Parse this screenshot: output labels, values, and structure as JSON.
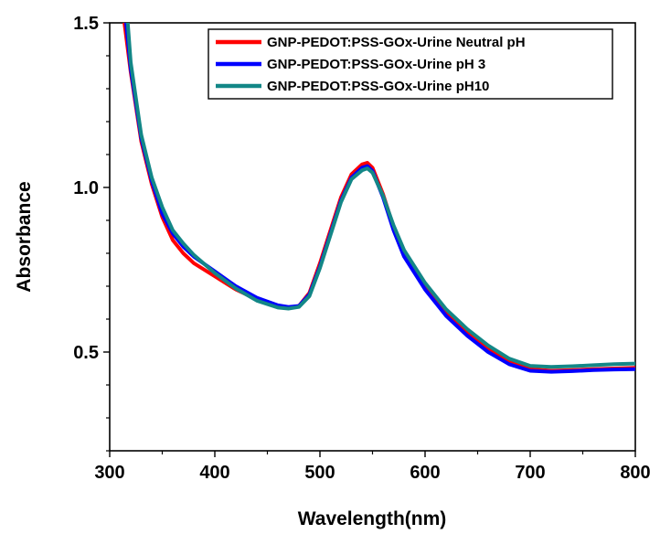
{
  "chart_data": {
    "type": "line",
    "title": "",
    "xlabel": "Wavelength(nm)",
    "ylabel": "Absorbance",
    "xlim": [
      300,
      800
    ],
    "ylim": [
      0.2,
      1.5
    ],
    "x_ticks": [
      300,
      400,
      500,
      600,
      700,
      800
    ],
    "x_tick_labels": [
      "300",
      "400",
      "500",
      "600",
      "700",
      "800"
    ],
    "y_ticks": [
      0.5,
      1.0,
      1.5
    ],
    "y_tick_labels": [
      "0.5",
      "1.0",
      "1.5"
    ],
    "grid": false,
    "legend_position": "top-right",
    "series": [
      {
        "name": "GNP-PEDOT:PSS-GOx-Urine Neutral pH",
        "color": "#ff0000",
        "x": [
          312,
          320,
          330,
          340,
          350,
          360,
          370,
          380,
          400,
          420,
          440,
          460,
          470,
          480,
          490,
          500,
          510,
          520,
          530,
          540,
          545,
          550,
          560,
          570,
          580,
          600,
          620,
          640,
          660,
          680,
          700,
          720,
          740,
          760,
          780,
          800
        ],
        "y": [
          1.55,
          1.35,
          1.14,
          1.01,
          0.91,
          0.84,
          0.8,
          0.77,
          0.73,
          0.69,
          0.66,
          0.64,
          0.635,
          0.64,
          0.68,
          0.77,
          0.87,
          0.97,
          1.04,
          1.07,
          1.075,
          1.06,
          0.98,
          0.88,
          0.8,
          0.7,
          0.62,
          0.56,
          0.51,
          0.47,
          0.448,
          0.443,
          0.445,
          0.448,
          0.45,
          0.452
        ]
      },
      {
        "name": "GNP-PEDOT:PSS-GOx-Urine pH 3",
        "color": "#0000ff",
        "x": [
          314,
          320,
          330,
          340,
          350,
          360,
          370,
          380,
          400,
          420,
          440,
          460,
          470,
          480,
          490,
          500,
          510,
          520,
          530,
          540,
          545,
          550,
          560,
          570,
          580,
          600,
          620,
          640,
          660,
          680,
          700,
          720,
          740,
          760,
          780,
          800
        ],
        "y": [
          1.55,
          1.36,
          1.15,
          1.02,
          0.92,
          0.86,
          0.82,
          0.79,
          0.745,
          0.7,
          0.665,
          0.642,
          0.637,
          0.64,
          0.675,
          0.76,
          0.86,
          0.96,
          1.03,
          1.06,
          1.065,
          1.05,
          0.97,
          0.87,
          0.79,
          0.69,
          0.61,
          0.55,
          0.5,
          0.463,
          0.443,
          0.44,
          0.442,
          0.445,
          0.447,
          0.448
        ]
      },
      {
        "name": "GNP-PEDOT:PSS-GOx-Urine pH10",
        "color": "#138787",
        "x": [
          316,
          320,
          330,
          340,
          350,
          360,
          370,
          380,
          400,
          420,
          440,
          460,
          470,
          480,
          490,
          500,
          510,
          520,
          530,
          540,
          545,
          550,
          560,
          570,
          580,
          600,
          620,
          640,
          660,
          680,
          700,
          720,
          740,
          760,
          780,
          800
        ],
        "y": [
          1.55,
          1.38,
          1.16,
          1.03,
          0.94,
          0.87,
          0.83,
          0.795,
          0.74,
          0.693,
          0.656,
          0.635,
          0.632,
          0.637,
          0.67,
          0.755,
          0.855,
          0.955,
          1.025,
          1.052,
          1.058,
          1.045,
          0.975,
          0.885,
          0.81,
          0.71,
          0.63,
          0.57,
          0.52,
          0.48,
          0.458,
          0.455,
          0.457,
          0.46,
          0.463,
          0.465
        ]
      }
    ]
  }
}
